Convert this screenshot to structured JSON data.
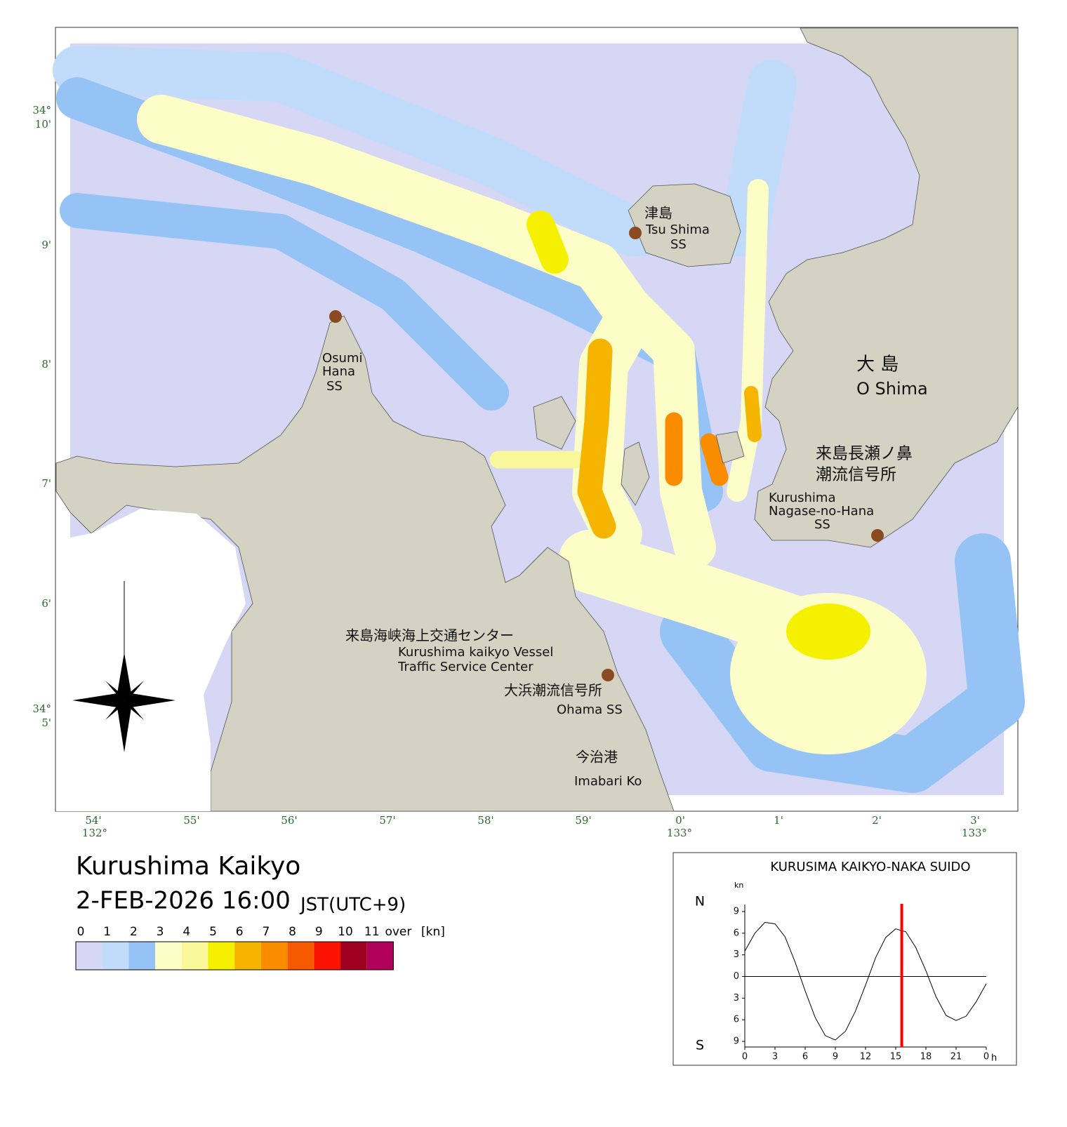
{
  "map": {
    "lon_labels": [
      "54'",
      "132°",
      "55'",
      "56'",
      "57'",
      "58'",
      "59'",
      "0'",
      "133°",
      "1'",
      "2'",
      "3'",
      "133°"
    ],
    "lat_labels": [
      "34°",
      "10'",
      "9'",
      "8'",
      "7'",
      "6'",
      "34°",
      "5'"
    ],
    "places": [
      "津島",
      "Tsu Shima",
      "SS",
      "Osumi",
      "Hana",
      "SS",
      "大 島",
      "O Shima",
      "来島長瀬ノ鼻",
      "潮流信号所",
      "Kurushima",
      "Nagase-no-Hana",
      "SS",
      "来島海峡海上交通センター",
      "Kurushima kaikyo Vessel",
      "Traffic Service Center",
      "大浜潮流信号所",
      "Ohama SS",
      "今治港",
      "Imabari Ko"
    ]
  },
  "header": {
    "title": "Kurushima Kaikyo",
    "datetime": "2-FEB-2026 16:00",
    "timezone": "JST(UTC+9)"
  },
  "legend": {
    "labels": [
      "0",
      "1",
      "2",
      "3",
      "4",
      "5",
      "6",
      "7",
      "8",
      "9",
      "10",
      "11",
      "over"
    ],
    "unit": "[kn]",
    "colors": [
      "#d6d6f5",
      "#c1dcfa",
      "#96c3f5",
      "#fdfdc8",
      "#f8f89a",
      "#f5f000",
      "#f5b400",
      "#fa8c00",
      "#f55a00",
      "#fa1400",
      "#a00020",
      "#b0005a"
    ]
  },
  "chart_data": {
    "type": "line",
    "title": "KURUSIMA KAIKYO-NAKA SUIDO",
    "y_unit": "kn",
    "x_unit": "h",
    "north": "N",
    "south": "S",
    "x": [
      0,
      1,
      2,
      3,
      4,
      5,
      6,
      7,
      8,
      9,
      10,
      11,
      12,
      13,
      14,
      15,
      16,
      17,
      18,
      19,
      20,
      21,
      22,
      23,
      24
    ],
    "series": [
      {
        "color": "#000000",
        "values": [
          3.5,
          6.0,
          7.5,
          7.3,
          5.5,
          2.0,
          -2.0,
          -5.7,
          -8.2,
          -8.8,
          -7.6,
          -4.8,
          -1.2,
          2.6,
          5.4,
          6.6,
          6.2,
          4.0,
          0.8,
          -2.8,
          -5.4,
          -6.1,
          -5.5,
          -3.5,
          -1.0
        ]
      }
    ],
    "marker": {
      "x": 15.6,
      "color": "#ff0000"
    },
    "xlim": [
      0,
      24
    ],
    "ylim": [
      -9,
      9
    ],
    "xticks": [
      0,
      3,
      6,
      9,
      12,
      15,
      18,
      21,
      {
        "value": 24,
        "label": "0"
      }
    ],
    "yticks": [
      9,
      6,
      3,
      0,
      {
        "value": -3,
        "label": "3"
      },
      {
        "value": -6,
        "label": "6"
      },
      {
        "value": -9,
        "label": "9"
      }
    ]
  }
}
